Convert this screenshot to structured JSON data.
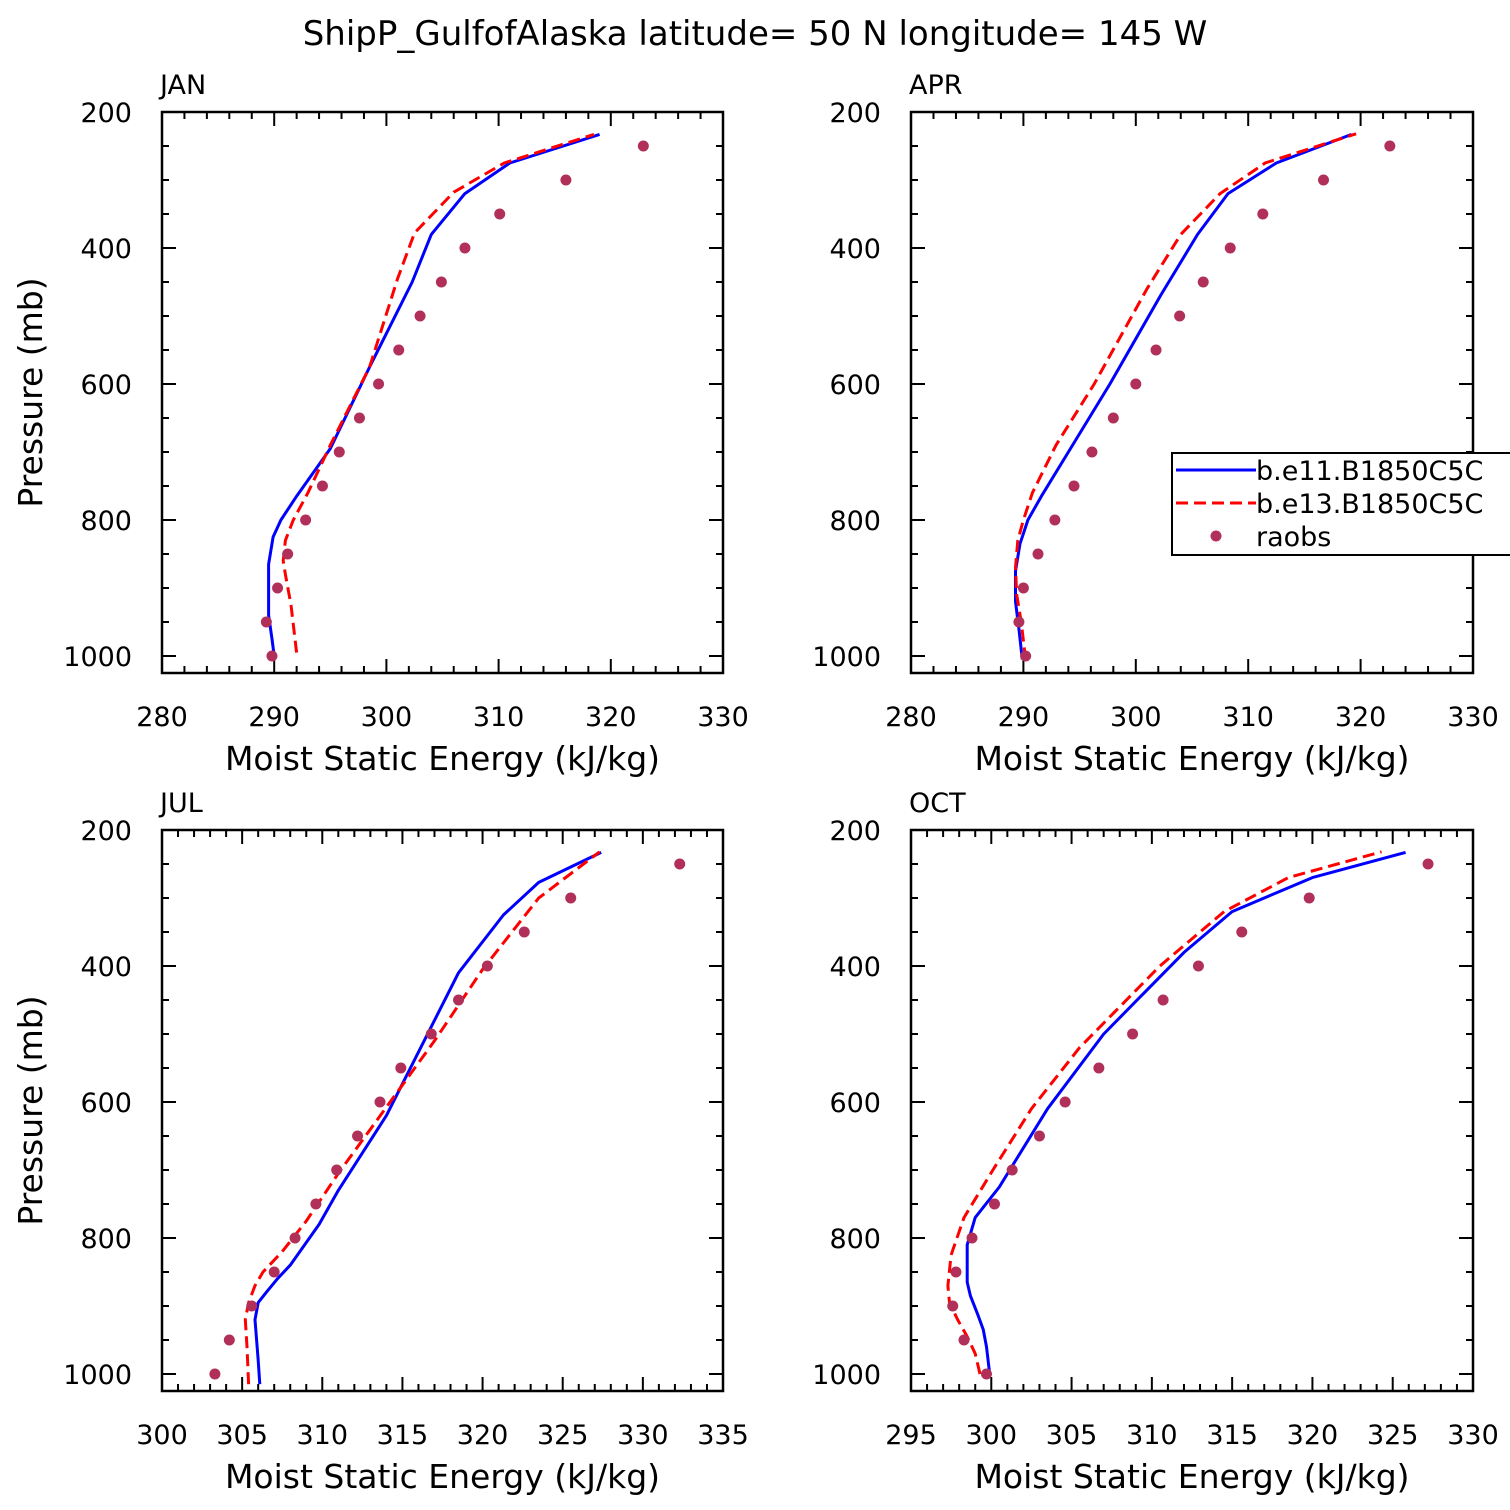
{
  "title": "ShipP_GulfofAlaska  latitude= 50 N longitude= 145 W",
  "colors": {
    "series1": "#0000ff",
    "series2": "#ff0000",
    "obs": "#b0305a",
    "axis": "#000000"
  },
  "legend": {
    "entries": [
      "b.e11.B1850C5C",
      "b.e13.B1850C5C",
      "raobs"
    ]
  },
  "chart_data": [
    {
      "type": "line",
      "panel_label": "JAN",
      "xlabel": "Moist Static Energy (kJ/kg)",
      "ylabel": "Pressure (mb)",
      "xlim": [
        280,
        330
      ],
      "ylim": [
        200,
        1025
      ],
      "xticks": [
        280,
        290,
        300,
        310,
        320,
        330
      ],
      "yticks": [
        200,
        400,
        600,
        800,
        1000
      ],
      "y_inverted": true,
      "series": [
        {
          "style": "solid",
          "x": [
            290.0,
            289.8,
            289.5,
            289.5,
            289.9,
            290.6,
            292.0,
            295.0,
            298.5,
            302.3,
            304.0,
            307.0,
            311.0,
            319.0
          ],
          "p": [
            1000,
            975,
            940,
            865,
            825,
            800,
            765,
            695,
            575,
            450,
            380,
            320,
            275,
            233
          ]
        },
        {
          "style": "dashed",
          "x": [
            292.0,
            291.5,
            291.0,
            290.8,
            291.0,
            291.7,
            293.0,
            295.0,
            298.5,
            301.0,
            302.5,
            306.0,
            310.5,
            318.5
          ],
          "p": [
            995,
            925,
            880,
            860,
            830,
            800,
            760,
            690,
            575,
            445,
            378,
            318,
            275,
            233
          ]
        },
        {
          "style": "points",
          "x": [
            289.8,
            289.3,
            290.3,
            291.2,
            292.8,
            294.3,
            295.8,
            297.6,
            299.3,
            301.1,
            303.0,
            304.9,
            307.0,
            310.1,
            316.0,
            322.9
          ],
          "p": [
            1000,
            950,
            900,
            850,
            800,
            750,
            700,
            650,
            600,
            550,
            500,
            450,
            400,
            350,
            300,
            250
          ]
        }
      ]
    },
    {
      "type": "line",
      "panel_label": "APR",
      "xlabel": "Moist Static Energy (kJ/kg)",
      "ylabel": "",
      "xlim": [
        280,
        330
      ],
      "ylim": [
        200,
        1025
      ],
      "xticks": [
        280,
        290,
        300,
        310,
        320,
        330
      ],
      "yticks": [
        200,
        400,
        600,
        800,
        1000
      ],
      "y_inverted": true,
      "series": [
        {
          "style": "solid",
          "x": [
            289.9,
            289.6,
            289.3,
            289.3,
            289.7,
            290.4,
            291.6,
            294.0,
            297.7,
            302.2,
            305.5,
            308.2,
            312.5,
            319.2
          ],
          "p": [
            1005,
            960,
            920,
            875,
            835,
            800,
            765,
            700,
            600,
            470,
            380,
            320,
            275,
            233
          ]
        },
        {
          "style": "dashed",
          "x": [
            290.2,
            289.8,
            289.4,
            289.3,
            289.5,
            290.0,
            290.8,
            292.9,
            296.3,
            301.0,
            304.0,
            307.5,
            311.5,
            319.6
          ],
          "p": [
            1005,
            950,
            910,
            870,
            830,
            800,
            760,
            690,
            600,
            460,
            380,
            320,
            275,
            232
          ]
        },
        {
          "style": "points",
          "x": [
            290.2,
            289.6,
            290.0,
            291.3,
            292.8,
            294.5,
            296.1,
            298.0,
            300.0,
            301.8,
            303.9,
            306.0,
            308.4,
            311.3,
            316.7,
            322.6
          ],
          "p": [
            1000,
            950,
            900,
            850,
            800,
            750,
            700,
            650,
            600,
            550,
            500,
            450,
            400,
            350,
            300,
            250
          ]
        }
      ]
    },
    {
      "type": "line",
      "panel_label": "JUL",
      "xlabel": "Moist Static Energy (kJ/kg)",
      "ylabel": "Pressure (mb)",
      "xlim": [
        300,
        335
      ],
      "ylim": [
        200,
        1025
      ],
      "xticks": [
        300,
        305,
        310,
        315,
        320,
        325,
        330,
        335
      ],
      "yticks": [
        200,
        400,
        600,
        800,
        1000
      ],
      "y_inverted": true,
      "series": [
        {
          "style": "solid",
          "x": [
            306.1,
            306.0,
            305.9,
            305.8,
            306.0,
            306.5,
            307.2,
            308.0,
            309.8,
            311.0,
            314.0,
            318.5,
            321.3,
            323.5,
            327.4
          ],
          "p": [
            1015,
            980,
            950,
            920,
            895,
            880,
            860,
            840,
            780,
            730,
            620,
            410,
            325,
            277,
            233
          ]
        },
        {
          "style": "dashed",
          "x": [
            305.4,
            305.3,
            305.2,
            305.4,
            305.8,
            306.3,
            307.5,
            309.0,
            311.0,
            313.0,
            317.0,
            320.0,
            323.5,
            327.3
          ],
          "p": [
            1015,
            960,
            920,
            895,
            870,
            850,
            820,
            775,
            705,
            640,
            510,
            405,
            300,
            232
          ]
        },
        {
          "style": "points",
          "x": [
            303.3,
            304.2,
            305.6,
            307.0,
            308.3,
            309.6,
            310.9,
            312.2,
            313.6,
            314.9,
            316.8,
            318.5,
            320.3,
            322.6,
            325.5,
            332.3
          ],
          "p": [
            1000,
            950,
            900,
            850,
            800,
            750,
            700,
            650,
            600,
            550,
            500,
            450,
            400,
            350,
            300,
            250
          ]
        }
      ]
    },
    {
      "type": "line",
      "panel_label": "OCT",
      "xlabel": "Moist Static Energy (kJ/kg)",
      "ylabel": "",
      "xlim": [
        295,
        330
      ],
      "ylim": [
        200,
        1025
      ],
      "xticks": [
        295,
        300,
        305,
        310,
        315,
        320,
        325,
        330
      ],
      "yticks": [
        200,
        400,
        600,
        800,
        1000
      ],
      "y_inverted": true,
      "series": [
        {
          "style": "solid",
          "x": [
            299.9,
            299.7,
            299.5,
            299.2,
            298.7,
            298.5,
            298.5,
            299.0,
            300.5,
            303.5,
            307.0,
            312.0,
            315.0,
            320.0,
            325.8
          ],
          "p": [
            1000,
            960,
            935,
            915,
            885,
            865,
            810,
            770,
            725,
            610,
            500,
            380,
            320,
            270,
            233
          ]
        },
        {
          "style": "dashed",
          "x": [
            299.3,
            299.0,
            298.5,
            297.9,
            297.4,
            297.3,
            297.5,
            298.3,
            300.1,
            302.5,
            305.5,
            310.5,
            314.5,
            318.5,
            324.3
          ],
          "p": [
            1000,
            970,
            945,
            920,
            895,
            870,
            825,
            770,
            700,
            610,
            520,
            400,
            320,
            270,
            232
          ]
        },
        {
          "style": "points",
          "x": [
            299.7,
            298.3,
            297.6,
            297.8,
            298.8,
            300.2,
            301.3,
            303.0,
            304.6,
            306.7,
            308.8,
            310.7,
            312.9,
            315.6,
            319.8,
            327.2
          ],
          "p": [
            1000,
            950,
            900,
            850,
            800,
            750,
            700,
            650,
            600,
            550,
            500,
            450,
            400,
            350,
            300,
            250
          ]
        }
      ]
    }
  ]
}
